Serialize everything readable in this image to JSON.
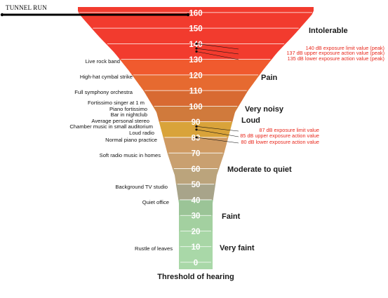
{
  "title": "TUNNEL RUN",
  "scale": {
    "unit_ticks": [
      160,
      150,
      140,
      130,
      120,
      110,
      100,
      90,
      80,
      70,
      60,
      50,
      40,
      30,
      20,
      10,
      0
    ],
    "band_colors": {
      "130-160": "#f23b2e",
      "120-130": "#f05a2e",
      "110-120": "#e66a30",
      "100-110": "#d86a32",
      "90-100": "#d07a3c",
      "80-90": "#d9a33a",
      "70-80": "#cf9a62",
      "60-70": "#c9a070",
      "50-60": "#bba47c",
      "40-50": "#a8a48a",
      "30-40": "#9bc497",
      "20-30": "#a3d0a0",
      "10-20": "#a8d6a6",
      "0-10": "#a9d8a8"
    },
    "line_color": "#ffffff",
    "accent_red": "#e8281c"
  },
  "categories": [
    {
      "label": "Intolerable",
      "level": 150
    },
    {
      "label": "Pain",
      "level": 120
    },
    {
      "label": "Very noisy",
      "level": 100
    },
    {
      "label": "Loud",
      "level": 90
    },
    {
      "label": "Moderate to quiet",
      "level": 60
    },
    {
      "label": "Faint",
      "level": 30
    },
    {
      "label": "Very faint",
      "level": 10
    },
    {
      "label": "Threshold of hearing",
      "level": -10
    }
  ],
  "sources": [
    {
      "label": "Live rock band",
      "level": 128
    },
    {
      "label": "High-hat cymbal strike",
      "level": 119
    },
    {
      "label": "Full symphony orchestra",
      "level": 109
    },
    {
      "label": "Fortissimo singer at 1 m",
      "level": 103
    },
    {
      "label": "Piano fortissimo",
      "level": 99
    },
    {
      "label": "Bar in nightclub",
      "level": 96
    },
    {
      "label": "Average personal stereo",
      "level": 92
    },
    {
      "label": "Chamber music in small auditorium",
      "level": 88
    },
    {
      "label": "Loud radio",
      "level": 85
    },
    {
      "label": "Normal piano practice",
      "level": 81
    },
    {
      "label": "Soft radio music in homes",
      "level": 68
    },
    {
      "label": "Background TV studio",
      "level": 48
    },
    {
      "label": "Quiet office",
      "level": 37
    },
    {
      "label": "Rustle of leaves",
      "level": 10
    }
  ],
  "exposure_limits": [
    {
      "value": 140,
      "label": "140 dB exposure limit value (peak)"
    },
    {
      "value": 137,
      "label": "137 dB upper exposure action value (peak)"
    },
    {
      "value": 135,
      "label": "135 dB lower exposure action value (peak)"
    },
    {
      "value": 87,
      "label": "87 dB exposure limit value"
    },
    {
      "value": 85,
      "label": "85 dB upper exposure action value"
    },
    {
      "value": 80,
      "label": "80 dB lower exposure action value"
    }
  ]
}
